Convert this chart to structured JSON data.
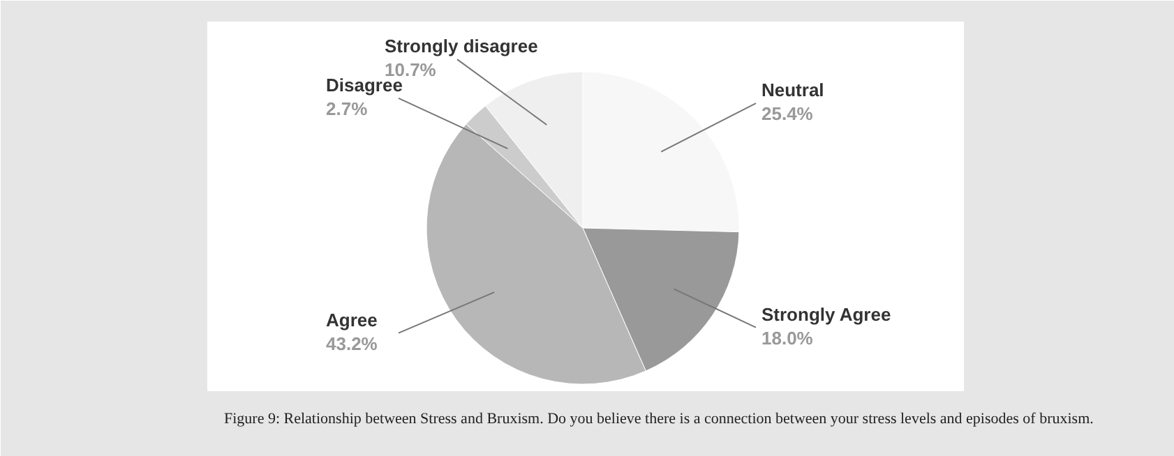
{
  "chart_data": {
    "type": "pie",
    "categories": [
      "Neutral",
      "Strongly Agree",
      "Agree",
      "Disagree",
      "Strongly disagree"
    ],
    "values": [
      25.4,
      18.0,
      43.2,
      2.7,
      10.7
    ],
    "colors": [
      "#f7f7f7",
      "#999999",
      "#b7b7b7",
      "#cccccc",
      "#efefef"
    ],
    "value_labels": [
      "25.4%",
      "18.0%",
      "43.2%",
      "2.7%",
      "10.7%"
    ],
    "annotations": [
      "Figure 9: Relationship between Stress and Bruxism. Do you believe there is a connection between your stress levels and episodes of bruxism."
    ]
  }
}
